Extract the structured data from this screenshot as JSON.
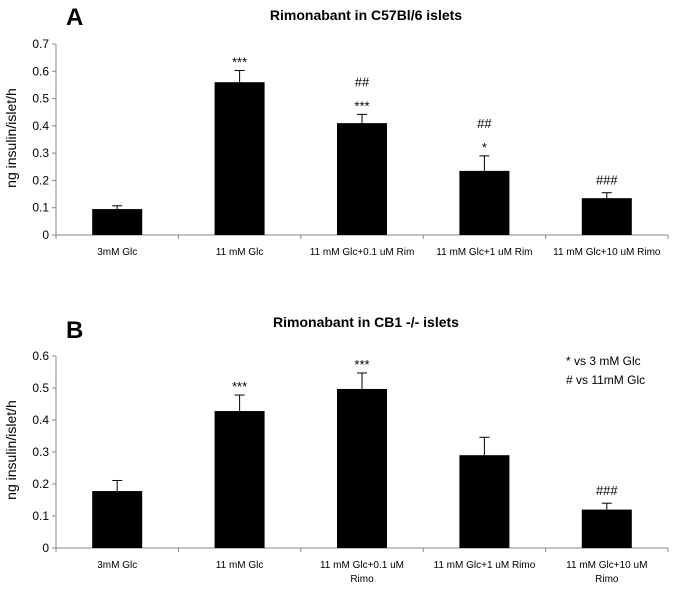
{
  "chart_data": [
    {
      "type": "bar",
      "panel": "A",
      "title": "Rimonabant in C57Bl/6 islets",
      "ylabel": "ng insulin/islet/h",
      "xlabel": "",
      "ylim": [
        0,
        0.7
      ],
      "yticks": [
        "0",
        "0.1",
        "0.2",
        "0.3",
        "0.4",
        "0.5",
        "0.6",
        "0.7"
      ],
      "categories": [
        [
          "3mM Glc"
        ],
        [
          "11 mM Glc"
        ],
        [
          "11 mM Glc+0.1 uM Rim"
        ],
        [
          "11 mM Glc+1 uM Rim"
        ],
        [
          "11 mM Glc+10 uM Rimo"
        ]
      ],
      "values": [
        0.095,
        0.56,
        0.41,
        0.235,
        0.135
      ],
      "errors": [
        0.012,
        0.043,
        0.032,
        0.055,
        0.02
      ],
      "annotations": [
        [],
        [
          "***"
        ],
        [
          "##",
          "***"
        ],
        [
          "##",
          "*"
        ],
        [
          "###"
        ]
      ]
    },
    {
      "type": "bar",
      "panel": "B",
      "title": "Rimonabant in CB1 -/- islets",
      "ylabel": "ng insulin/islet/h",
      "xlabel": "",
      "ylim": [
        0,
        0.6
      ],
      "yticks": [
        "0",
        "0.1",
        "0.2",
        "0.3",
        "0.4",
        "0.5",
        "0.6"
      ],
      "categories": [
        [
          "3mM Glc"
        ],
        [
          "11 mM Glc"
        ],
        [
          "11 mM Glc+0.1 uM",
          "Rimo"
        ],
        [
          "11 mM Glc+1 uM Rimo"
        ],
        [
          "11 mM Glc+10 uM",
          "Rimo"
        ]
      ],
      "values": [
        0.178,
        0.428,
        0.497,
        0.29,
        0.12
      ],
      "errors": [
        0.033,
        0.05,
        0.05,
        0.056,
        0.02
      ],
      "annotations": [
        [],
        [
          "***"
        ],
        [
          "***"
        ],
        [],
        [
          "###"
        ]
      ],
      "legend_notes": [
        "* vs 3 mM Glc",
        "# vs 11mM Glc"
      ]
    }
  ]
}
